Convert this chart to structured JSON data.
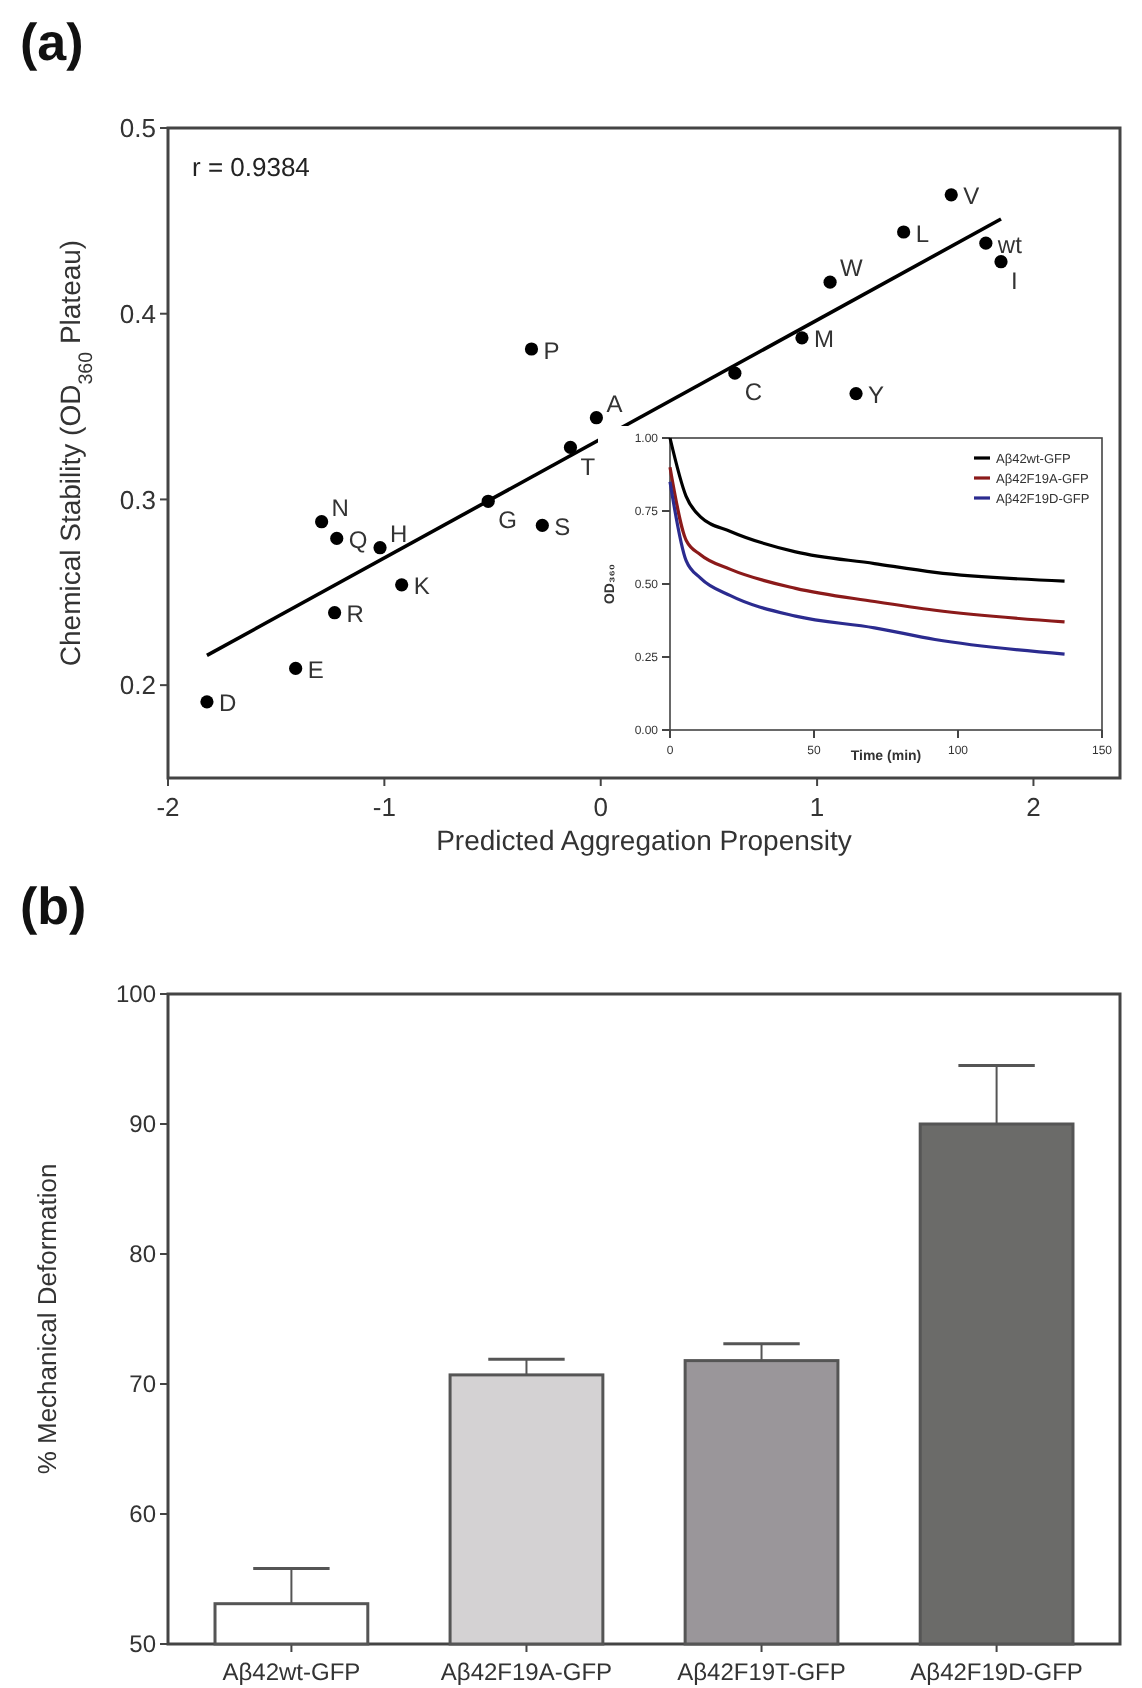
{
  "chart_data": [
    {
      "type": "scatter",
      "title": "(a)",
      "xlabel": "Predicted Aggregation Propensity",
      "ylabel": "Chemical Stability (OD$_{360}$ Plateau)",
      "xlim": [
        -2,
        2.4
      ],
      "xticks": [
        -2,
        -1,
        0,
        1,
        2
      ],
      "ylim": [
        0.15,
        0.5
      ],
      "yticks": [
        0.2,
        0.3,
        0.4,
        0.5
      ],
      "series": [
        {
          "type": "scatter",
          "marker": "circle",
          "color": "#000000",
          "x": [
            1.62,
            1.4,
            1.78,
            1.85,
            1.06,
            0.93,
            1.18,
            0.62,
            -0.32,
            -0.02,
            -0.14,
            -0.52,
            -0.27,
            -1.29,
            -1.22,
            -1.02,
            -0.92,
            -1.23,
            -1.41,
            -1.82
          ],
          "values": [
            0.464,
            0.444,
            0.438,
            0.428,
            0.417,
            0.387,
            0.357,
            0.368,
            0.381,
            0.344,
            0.328,
            0.299,
            0.286,
            0.288,
            0.279,
            0.274,
            0.254,
            0.239,
            0.209,
            0.191
          ]
        },
        {
          "type": "line",
          "color": "#000000",
          "x": [
            -1.82,
            1.85
          ],
          "values": [
            0.216,
            0.451
          ]
        }
      ],
      "annotations": [
        "r = 0.9384",
        {
          "text": "V",
          "x": 1.62,
          "y": 0.464
        },
        {
          "text": "L",
          "x": 1.4,
          "y": 0.444
        },
        {
          "text": "wt",
          "x": 1.78,
          "y": 0.438
        },
        {
          "text": "I",
          "x": 1.85,
          "y": 0.428
        },
        {
          "text": "W",
          "x": 1.06,
          "y": 0.417
        },
        {
          "text": "M",
          "x": 0.93,
          "y": 0.387
        },
        {
          "text": "Y",
          "x": 1.18,
          "y": 0.357
        },
        {
          "text": "C",
          "x": 0.62,
          "y": 0.368
        },
        {
          "text": "P",
          "x": -0.32,
          "y": 0.381
        },
        {
          "text": "A",
          "x": -0.02,
          "y": 0.344
        },
        {
          "text": "T",
          "x": -0.14,
          "y": 0.328
        },
        {
          "text": "G",
          "x": -0.52,
          "y": 0.299
        },
        {
          "text": "S",
          "x": -0.27,
          "y": 0.286
        },
        {
          "text": "N",
          "x": -1.29,
          "y": 0.288
        },
        {
          "text": "Q",
          "x": -1.22,
          "y": 0.279
        },
        {
          "text": "H",
          "x": -1.02,
          "y": 0.274
        },
        {
          "text": "K",
          "x": -0.92,
          "y": 0.254
        },
        {
          "text": "R",
          "x": -1.23,
          "y": 0.239
        },
        {
          "text": "E",
          "x": -1.41,
          "y": 0.209
        },
        {
          "text": "D",
          "x": -1.82,
          "y": 0.191
        }
      ]
    },
    {
      "type": "line",
      "xlabel": "Time (min)",
      "ylabel": "OD₃₆₀",
      "xlim": [
        0,
        150
      ],
      "xticks": [
        0,
        50,
        100,
        150
      ],
      "ylim": [
        0,
        1
      ],
      "yticks": [
        {
          "value": 0,
          "label": "0.00"
        },
        {
          "value": 0.25,
          "label": "0.25"
        },
        {
          "value": 0.5,
          "label": "0.50"
        },
        {
          "value": 0.75,
          "label": "0.75"
        },
        {
          "value": 1,
          "label": "1.00"
        }
      ],
      "legend": "top right",
      "x": [
        0,
        5.6,
        10.6,
        21,
        43.6,
        71,
        92,
        137
      ],
      "series": [
        {
          "name": "Aβ42wt-GFP",
          "color": "#000000",
          "values": [
            1.0,
            0.8,
            0.73,
            0.68,
            0.61,
            0.57,
            0.54,
            0.51
          ]
        },
        {
          "name": "Aβ42F19A-GFP",
          "color": "#8b1a1a",
          "values": [
            0.9,
            0.65,
            0.6,
            0.55,
            0.485,
            0.44,
            0.41,
            0.37
          ]
        },
        {
          "name": "Aβ42F19D-GFP",
          "color": "#2b2b8f",
          "values": [
            0.85,
            0.58,
            0.52,
            0.46,
            0.39,
            0.35,
            0.31,
            0.26
          ]
        }
      ]
    },
    {
      "type": "bar",
      "title": "(b)",
      "ylabel": "% Mechanical Deformation",
      "categories": [
        "Aβ42wt-GFP",
        "Aβ42F19A-GFP",
        "Aβ42F19T-GFP",
        "Aβ42F19D-GFP"
      ],
      "values": [
        53.1,
        70.7,
        71.8,
        90.0
      ],
      "errors": [
        [
          53.1,
          55.8
        ],
        [
          70.7,
          71.9
        ],
        [
          71.8,
          73.1
        ],
        [
          90.0,
          94.5
        ]
      ],
      "colors": [
        "#ffffff",
        "#d4d2d3",
        "#9a969a",
        "#6b6b69"
      ],
      "ylim": [
        50,
        100
      ],
      "yticks": [
        50,
        60,
        70,
        80,
        90,
        100
      ]
    }
  ]
}
